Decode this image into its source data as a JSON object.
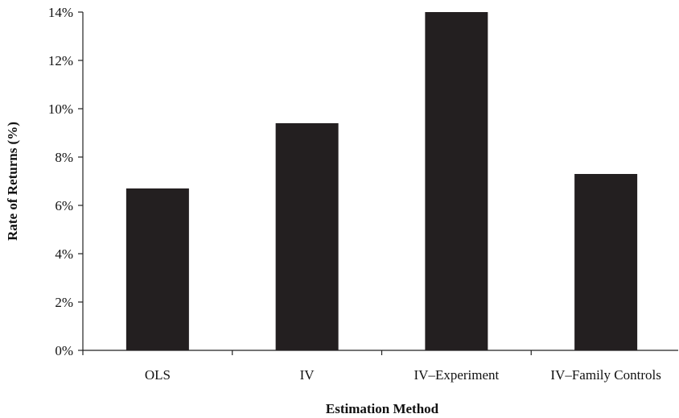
{
  "chart_data": {
    "type": "bar",
    "title": "",
    "xlabel": "Estimation Method",
    "ylabel": "Rate of Returns (%)",
    "categories": [
      "OLS",
      "IV",
      "IV–Experiment",
      "IV–Family Controls"
    ],
    "values": [
      6.7,
      9.4,
      14.0,
      7.3
    ],
    "ylim": [
      0,
      14
    ],
    "yticks": [
      0,
      2,
      4,
      6,
      8,
      10,
      12,
      14
    ],
    "ytick_labels": [
      "0%",
      "2%",
      "4%",
      "6%",
      "8%",
      "10%",
      "12%",
      "14%"
    ],
    "bar_color": "#231f20",
    "grid": false,
    "legend": "none"
  }
}
